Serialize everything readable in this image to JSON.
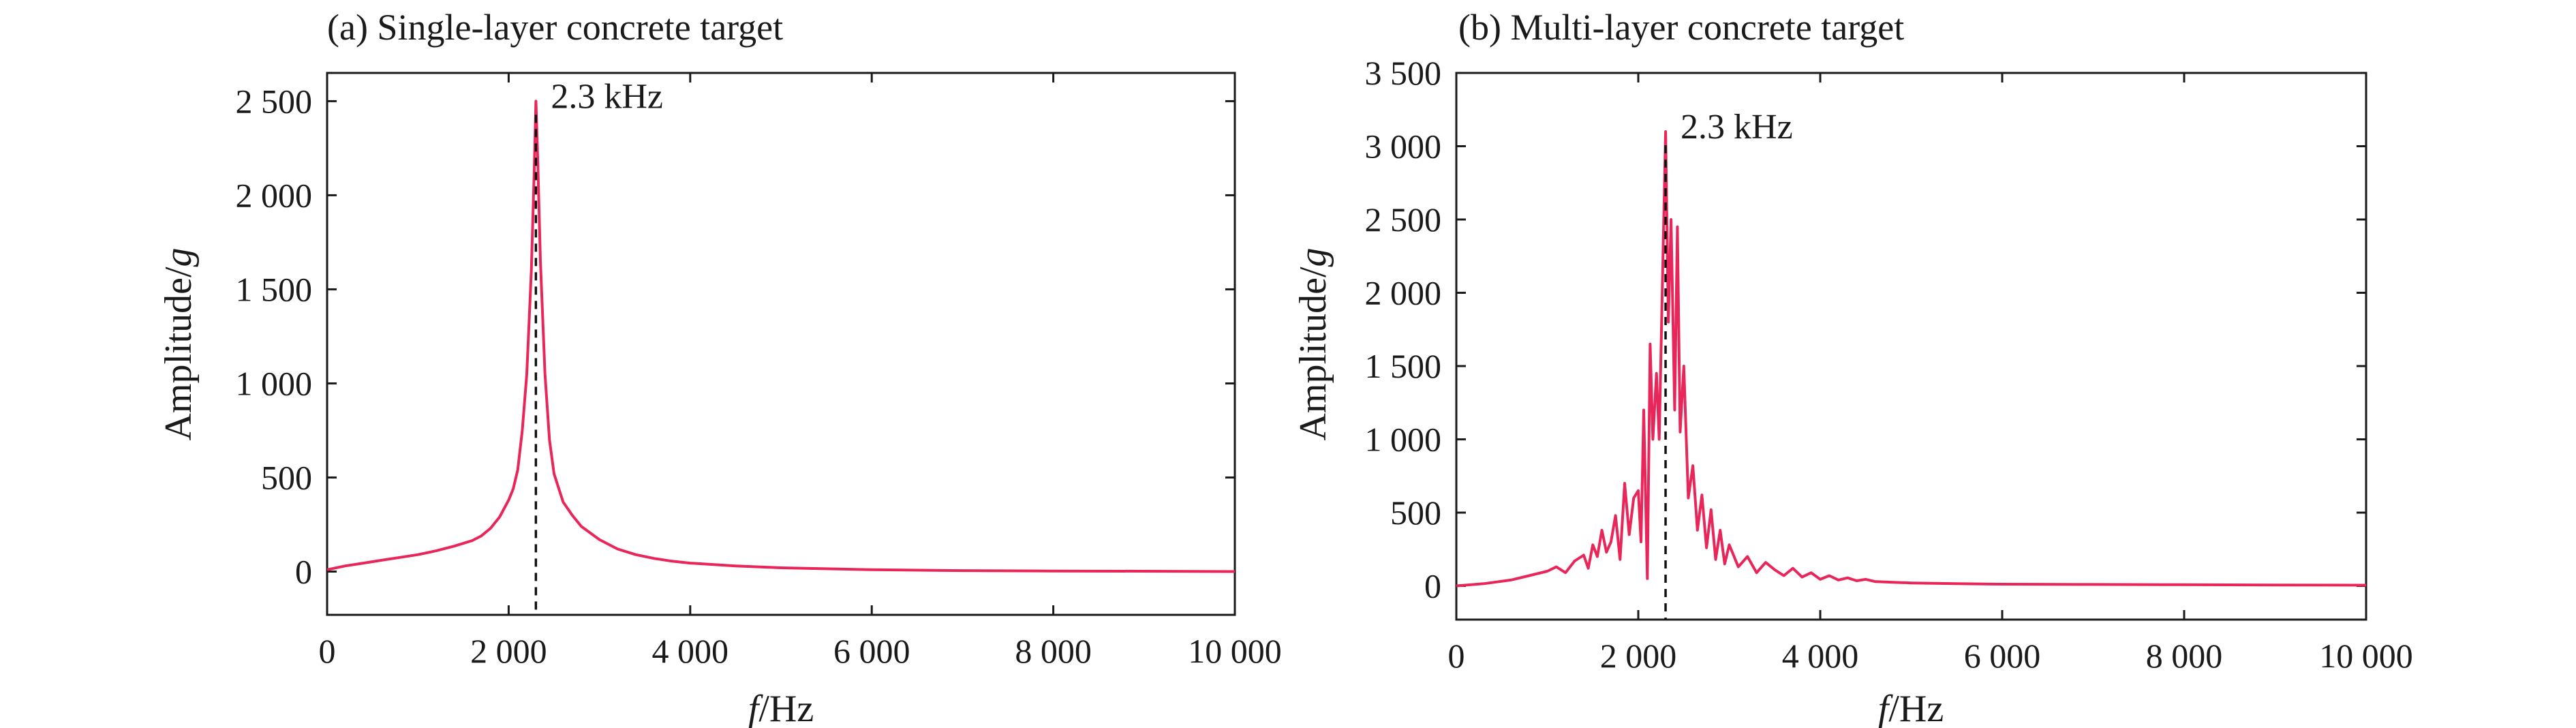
{
  "chart_data": [
    {
      "type": "line",
      "title": "(a) Single-layer concrete target",
      "xlabel_var": "f",
      "xlabel_unit": "/Hz",
      "ylabel_text": "Amplitude/",
      "ylabel_var": "g",
      "xlim": [
        0,
        10000
      ],
      "ylim": [
        -230,
        2650
      ],
      "xticks": [
        0,
        2000,
        4000,
        6000,
        8000,
        10000
      ],
      "xtick_labels": [
        "0",
        "2 000",
        "4 000",
        "6 000",
        "8 000",
        "10 000"
      ],
      "yticks": [
        0,
        500,
        1000,
        1500,
        2000,
        2500
      ],
      "ytick_labels": [
        "0",
        "500",
        "1 000",
        "1 500",
        "2 000",
        "2 500"
      ],
      "grid": false,
      "annotation": {
        "text": "2.3 kHz",
        "x": 2300
      },
      "series": [
        {
          "color": "#e8265a",
          "x": [
            0,
            200,
            400,
            600,
            800,
            1000,
            1200,
            1400,
            1600,
            1700,
            1800,
            1900,
            2000,
            2050,
            2100,
            2150,
            2200,
            2250,
            2280,
            2300,
            2320,
            2350,
            2400,
            2450,
            2500,
            2600,
            2700,
            2800,
            3000,
            3200,
            3400,
            3600,
            3800,
            4000,
            4500,
            5000,
            5500,
            6000,
            7000,
            8000,
            9000,
            10000
          ],
          "y": [
            10,
            30,
            45,
            60,
            75,
            90,
            110,
            135,
            165,
            190,
            230,
            290,
            380,
            440,
            540,
            750,
            1050,
            1600,
            2100,
            2500,
            2200,
            1650,
            1050,
            700,
            520,
            370,
            300,
            240,
            170,
            120,
            90,
            70,
            55,
            45,
            30,
            20,
            15,
            10,
            5,
            3,
            2,
            0
          ]
        }
      ]
    },
    {
      "type": "line",
      "title": "(b) Multi-layer concrete target",
      "xlabel_var": "f",
      "xlabel_unit": "/Hz",
      "ylabel_text": "Amplitude/",
      "ylabel_var": "g",
      "xlim": [
        0,
        10000
      ],
      "ylim": [
        -230,
        3500
      ],
      "xticks": [
        0,
        2000,
        4000,
        6000,
        8000,
        10000
      ],
      "xtick_labels": [
        "0",
        "2 000",
        "4 000",
        "6 000",
        "8 000",
        "10 000"
      ],
      "yticks": [
        0,
        500,
        1000,
        1500,
        2000,
        2500,
        3000,
        3500
      ],
      "ytick_labels": [
        "0",
        "500",
        "1 000",
        "1 500",
        "2 000",
        "2 500",
        "3 000",
        "3 500"
      ],
      "grid": false,
      "annotation": {
        "text": "2.3 kHz",
        "x": 2300
      },
      "series": [
        {
          "color": "#e8265a",
          "x": [
            0,
            300,
            600,
            800,
            1000,
            1100,
            1200,
            1300,
            1400,
            1450,
            1500,
            1550,
            1600,
            1650,
            1700,
            1750,
            1800,
            1850,
            1900,
            1950,
            2000,
            2030,
            2060,
            2100,
            2130,
            2160,
            2200,
            2230,
            2260,
            2300,
            2330,
            2360,
            2400,
            2430,
            2460,
            2500,
            2550,
            2600,
            2650,
            2700,
            2750,
            2800,
            2850,
            2900,
            2950,
            3000,
            3100,
            3200,
            3300,
            3400,
            3500,
            3600,
            3700,
            3800,
            3900,
            4000,
            4100,
            4200,
            4300,
            4400,
            4500,
            4600,
            4800,
            5000,
            5500,
            6000,
            7000,
            8000,
            9000,
            10000
          ],
          "y": [
            0,
            15,
            40,
            70,
            100,
            130,
            90,
            170,
            210,
            120,
            280,
            200,
            380,
            230,
            300,
            480,
            180,
            700,
            350,
            600,
            650,
            300,
            1200,
            50,
            1650,
            1000,
            1450,
            1000,
            1900,
            3100,
            1800,
            2500,
            1200,
            2450,
            1050,
            1500,
            600,
            820,
            380,
            620,
            260,
            520,
            180,
            380,
            150,
            280,
            130,
            200,
            90,
            160,
            110,
            70,
            120,
            60,
            90,
            45,
            70,
            40,
            55,
            35,
            45,
            30,
            25,
            20,
            15,
            12,
            10,
            8,
            6,
            5
          ]
        }
      ]
    }
  ]
}
